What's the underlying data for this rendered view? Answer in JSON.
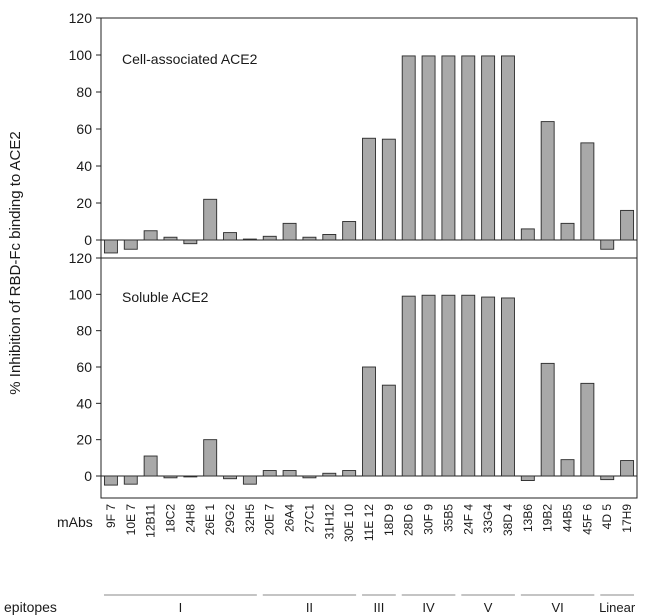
{
  "chart_data": [
    {
      "type": "bar",
      "title": "Cell-associated ACE2",
      "ylim": [
        -5,
        120
      ],
      "yticks": [
        0,
        20,
        40,
        60,
        80,
        100,
        120
      ],
      "values": [
        -7,
        -5,
        5,
        1.5,
        -2,
        22,
        4,
        0.5,
        2,
        9,
        1.5,
        3,
        10,
        55,
        54.5,
        99.5,
        99.5,
        99.5,
        99.5,
        99.5,
        99.5,
        6,
        64,
        9,
        52.5,
        -5,
        16
      ],
      "bar_color": "#a9a9a9",
      "grid": false
    },
    {
      "type": "bar",
      "title": "Soluble ACE2",
      "ylim": [
        -5,
        120
      ],
      "yticks": [
        0,
        20,
        40,
        60,
        80,
        100,
        120
      ],
      "values": [
        -5,
        -4.5,
        11,
        -1,
        -0.5,
        20,
        -1.5,
        -4.5,
        3,
        3,
        -1,
        1.5,
        3,
        60,
        50,
        99,
        99.5,
        99.5,
        99.5,
        98.5,
        98,
        -2.5,
        62,
        9,
        51,
        -2,
        8.5
      ],
      "bar_color": "#a9a9a9",
      "grid": false
    }
  ],
  "shared": {
    "ylabel": "% Inhibition of RBD-Fc binding to ACE2",
    "xlabel": "mAbs",
    "categories": [
      "9F 7",
      "10E 7",
      "12B11",
      "18C2",
      "24H8",
      "26E 1",
      "29G2",
      "32H5",
      "20E 7",
      "26A4",
      "27C1",
      "31H12",
      "30E 10",
      "11E 12",
      "18D 9",
      "28D 6",
      "30F 9",
      "35B5",
      "24F 4",
      "33G4",
      "38D 4",
      "13B6",
      "19B2",
      "44B5",
      "45F 6",
      "4D 5",
      "17H9"
    ],
    "epitopes_label": "epitopes",
    "epitope_groups": [
      {
        "label": "I",
        "start": 0,
        "end": 7
      },
      {
        "label": "II",
        "start": 8,
        "end": 12
      },
      {
        "label": "III",
        "start": 13,
        "end": 14
      },
      {
        "label": "IV",
        "start": 15,
        "end": 17
      },
      {
        "label": "V",
        "start": 18,
        "end": 20
      },
      {
        "label": "VI",
        "start": 21,
        "end": 24
      },
      {
        "label": "Linear",
        "start": 25,
        "end": 26
      }
    ]
  }
}
